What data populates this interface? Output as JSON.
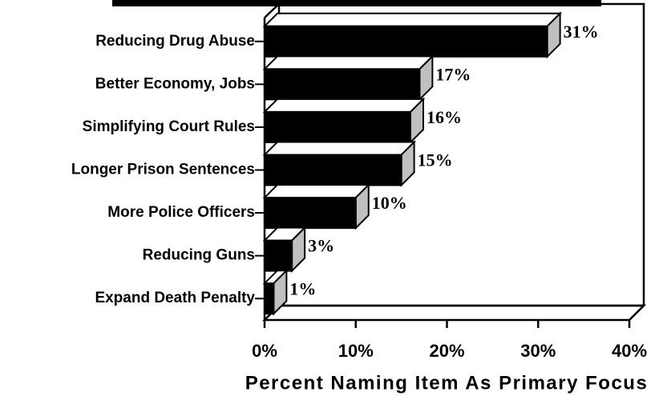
{
  "chart_data": {
    "type": "bar",
    "orientation": "horizontal",
    "categories": [
      "Reducing Drug Abuse",
      "Better Economy, Jobs",
      "Simplifying Court Rules",
      "Longer Prison Sentences",
      "More Police Officers",
      "Reducing Guns",
      "Expand Death Penalty"
    ],
    "values": [
      31,
      17,
      16,
      15,
      10,
      3,
      1
    ],
    "value_labels": [
      "31%",
      "17%",
      "16%",
      "15%",
      "10%",
      "3%",
      "1%"
    ],
    "color": "#000000",
    "side_color": "#c0c0c0",
    "xlim": [
      0,
      40
    ],
    "xticks": [
      {
        "value": 0,
        "label": "0%"
      },
      {
        "value": 10,
        "label": "10%"
      },
      {
        "value": 20,
        "label": "20%"
      },
      {
        "value": 30,
        "label": "30%"
      },
      {
        "value": 40,
        "label": "40%"
      }
    ],
    "x_label": "Percent Naming Item As Primary Focus"
  }
}
